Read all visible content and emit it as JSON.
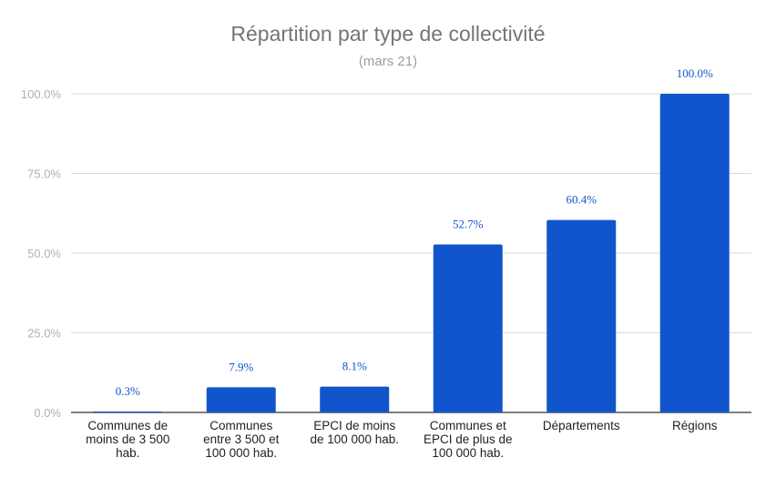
{
  "chart_data": {
    "type": "bar",
    "title": "Répartition par type de collectivité",
    "subtitle": "(mars 21)",
    "xlabel": "",
    "ylabel": "",
    "ylim": [
      0,
      100
    ],
    "yticks": [
      "0.0%",
      "25.0%",
      "50.0%",
      "75.0%",
      "100.0%"
    ],
    "ytick_values": [
      0,
      25,
      50,
      75,
      100
    ],
    "grid": true,
    "bar_color": "#1155cc",
    "categories": [
      [
        "Communes de",
        "moins de 3 500",
        "hab."
      ],
      [
        "Communes",
        "entre 3 500 et",
        "100 000 hab."
      ],
      [
        "EPCI de moins",
        "de 100 000 hab."
      ],
      [
        "Communes et",
        "EPCI de plus de",
        "100 000 hab."
      ],
      [
        "Départements"
      ],
      [
        "Régions"
      ]
    ],
    "values": [
      0.3,
      7.9,
      8.1,
      52.7,
      60.4,
      100.0
    ],
    "data_labels": [
      "0.3%",
      "7.9%",
      "8.1%",
      "52.7%",
      "60.4%",
      "100.0%"
    ]
  }
}
